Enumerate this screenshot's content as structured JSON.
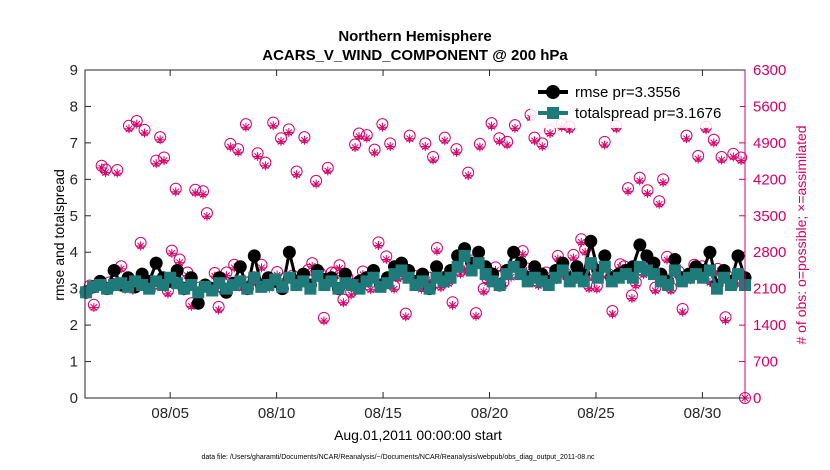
{
  "chart_data": {
    "type": "line",
    "title": [
      "Northern Hemisphere",
      "ACARS_V_WIND_COMPONENT @ 200 hPa"
    ],
    "xlabel": "Aug.01,2011 00:00:00 start",
    "ylabel_left": "rmse and totalspread",
    "ylabel_right": "# of obs: o=possible; ×=assimilated",
    "x_ticks": [
      {
        "day": 5,
        "label": "08/05"
      },
      {
        "day": 10,
        "label": "08/10"
      },
      {
        "day": 15,
        "label": "08/15"
      },
      {
        "day": 20,
        "label": "08/20"
      },
      {
        "day": 25,
        "label": "08/25"
      },
      {
        "day": 30,
        "label": "08/30"
      }
    ],
    "xlim": [
      1,
      32
    ],
    "ylim_left": [
      0,
      9
    ],
    "ylim_right": [
      0,
      6300
    ],
    "yticks_left": [
      "0",
      "1",
      "2",
      "3",
      "4",
      "5",
      "6",
      "7",
      "8",
      "9"
    ],
    "yticks_right": [
      "0",
      "700",
      "1400",
      "2100",
      "2800",
      "3500",
      "4200",
      "4900",
      "5600",
      "6300"
    ],
    "series": [
      {
        "name": "rmse",
        "legend": "rmse pr=3.3556",
        "color": "#000000",
        "marker": "circle",
        "values": [
          2.9,
          3.05,
          3.2,
          3.0,
          3.5,
          3.1,
          3.3,
          3.05,
          3.4,
          3.2,
          3.7,
          3.3,
          3.2,
          3.5,
          3.0,
          3.3,
          2.6,
          3.1,
          3.0,
          3.3,
          2.9,
          3.15,
          3.6,
          3.0,
          3.9,
          3.1,
          3.3,
          3.2,
          3.0,
          4.0,
          3.2,
          3.4,
          3.1,
          3.5,
          3.25,
          3.3,
          3.0,
          3.4,
          3.1,
          3.2,
          3.3,
          3.5,
          3.1,
          3.3,
          3.6,
          3.7,
          3.5,
          3.2,
          3.4,
          3.0,
          3.6,
          3.3,
          3.5,
          3.9,
          4.1,
          3.7,
          4.0,
          3.6,
          3.4,
          3.1,
          3.5,
          4.0,
          3.7,
          3.3,
          3.6,
          3.4,
          3.2,
          3.5,
          3.7,
          3.3,
          3.6,
          3.4,
          4.3,
          3.5,
          3.9,
          3.3,
          3.4,
          3.5,
          3.6,
          4.2,
          3.9,
          3.7,
          3.4,
          3.2,
          3.8,
          3.3,
          3.4,
          3.6,
          3.5,
          4.0,
          3.1,
          3.5,
          3.2,
          3.9,
          3.3
        ]
      },
      {
        "name": "totalspread",
        "legend": "totalspread pr=3.1676",
        "color": "#1f7a7a",
        "marker": "square",
        "values": [
          2.9,
          3.05,
          3.1,
          3.0,
          3.1,
          3.15,
          3.05,
          3.2,
          3.1,
          3.0,
          3.2,
          3.1,
          3.3,
          3.15,
          3.0,
          3.1,
          2.9,
          3.05,
          2.95,
          3.15,
          3.0,
          3.1,
          3.2,
          3.0,
          3.3,
          3.05,
          3.1,
          3.25,
          3.05,
          3.3,
          3.1,
          3.2,
          3.0,
          3.35,
          3.1,
          3.2,
          3.0,
          3.15,
          3.1,
          3.0,
          3.2,
          3.3,
          3.05,
          3.15,
          3.4,
          3.5,
          3.3,
          3.1,
          3.2,
          3.0,
          3.3,
          3.2,
          3.3,
          3.6,
          3.9,
          3.5,
          3.7,
          3.4,
          3.2,
          3.1,
          3.4,
          3.6,
          3.4,
          3.2,
          3.3,
          3.2,
          3.1,
          3.3,
          3.5,
          3.2,
          3.3,
          3.2,
          3.7,
          3.3,
          3.6,
          3.2,
          3.3,
          3.4,
          3.3,
          3.6,
          3.5,
          3.4,
          3.2,
          3.1,
          3.5,
          3.2,
          3.3,
          3.4,
          3.3,
          3.5,
          3.0,
          3.3,
          3.1,
          3.4,
          3.1
        ]
      },
      {
        "name": "obs_possible",
        "color": "#d4006a",
        "marker": "open-circle",
        "axis": "right",
        "values": [
          2050,
          2160,
          1790,
          2180,
          4460,
          4390,
          2220,
          2190,
          4380,
          2530,
          2140,
          5230,
          2120,
          5320,
          2980,
          5150,
          2200,
          2160,
          4560,
          5010,
          4620,
          2060,
          2830,
          4020,
          2660,
          2120,
          2410,
          1820,
          4000,
          2120,
          3970,
          3550,
          2120,
          2400,
          1750,
          2110,
          2410,
          4880,
          2560,
          4780,
          2170,
          5260,
          2230,
          2320,
          4700,
          2560,
          4520,
          2170,
          5290,
          2420,
          4990,
          2300,
          5160,
          2350,
          4350,
          2250,
          5010,
          2460,
          2590,
          4170,
          2400,
          1540,
          4420,
          2410,
          2410,
          2550,
          1890,
          2320,
          2040,
          4870,
          5080,
          2430,
          5050,
          2140,
          4770,
          2990,
          5260,
          2720,
          4890,
          2150,
          2350,
          2440,
          1620,
          5040,
          2350,
          2230,
          2150,
          4890,
          2310,
          4630,
          2880,
          2180,
          5000,
          2260,
          1840,
          4780,
          2440,
          2520,
          4330,
          2640,
          1630,
          4880,
          2100,
          2280,
          5280,
          2510,
          4990,
          2220,
          4920,
          2380,
          5240,
          2490,
          2820,
          2490,
          5440,
          5000,
          2220,
          4890,
          2410,
          5140,
          2310,
          2730,
          5260,
          2390,
          5210,
          2750,
          2530,
          3050,
          2860,
          2160,
          2380,
          2150,
          2400,
          4920,
          2380,
          1670,
          5230,
          2570,
          2530,
          4030,
          1970,
          2220,
          4230,
          2430,
          3990,
          2550,
          2120,
          3780,
          4200,
          2710,
          2120,
          2450,
          2430,
          1710,
          5040,
          2330,
          2560,
          4650,
          2530,
          5210,
          2280,
          4960,
          2480,
          4630,
          1550,
          2320,
          4690,
          2250,
          4620,
          0
        ]
      },
      {
        "name": "obs_assimilated",
        "color": "#d4006a",
        "marker": "asterisk",
        "axis": "right",
        "values": [
          1990,
          2100,
          1740,
          2120,
          4420,
          4330,
          2160,
          2130,
          4320,
          2480,
          2090,
          5170,
          2070,
          5260,
          2920,
          5090,
          2140,
          2100,
          4500,
          4960,
          4560,
          2000,
          2780,
          3960,
          2600,
          2060,
          2350,
          1760,
          3940,
          2060,
          3910,
          3490,
          2060,
          2340,
          1690,
          2050,
          2350,
          4820,
          2500,
          4720,
          2110,
          5200,
          2170,
          2260,
          4640,
          2500,
          4460,
          2110,
          5230,
          2360,
          4930,
          2240,
          5100,
          2290,
          4290,
          2190,
          4950,
          2400,
          2530,
          4110,
          2340,
          1480,
          4360,
          2350,
          2350,
          2490,
          1830,
          2260,
          1980,
          4810,
          5020,
          2370,
          4990,
          2080,
          4710,
          2930,
          5200,
          2660,
          4830,
          2090,
          2290,
          2380,
          1560,
          4980,
          2290,
          2170,
          2090,
          4830,
          2250,
          4570,
          2820,
          2120,
          4940,
          2200,
          1780,
          4720,
          2380,
          2460,
          4270,
          2580,
          1570,
          4820,
          2040,
          2220,
          5220,
          2450,
          4930,
          2160,
          4860,
          2320,
          5180,
          2430,
          2760,
          2430,
          5380,
          4940,
          2160,
          4830,
          2350,
          5080,
          2250,
          2670,
          5200,
          2330,
          5150,
          2690,
          2470,
          2990,
          2800,
          2100,
          2320,
          2090,
          2340,
          4860,
          2320,
          1610,
          5170,
          2510,
          2470,
          3970,
          1910,
          2160,
          4170,
          2370,
          3930,
          2490,
          2060,
          3720,
          4140,
          2650,
          2060,
          2390,
          2370,
          1650,
          4980,
          2270,
          2500,
          4590,
          2470,
          5150,
          2220,
          4900,
          2420,
          4570,
          1490,
          2260,
          4630,
          2190,
          4560,
          0
        ]
      }
    ]
  },
  "footnote": "data file: /Users/gharamti/Documents/NCAR/Reanalysis/~/Documents/NCAR/Reanalysis/webpub/obs_diag_output_2011-08.nc"
}
